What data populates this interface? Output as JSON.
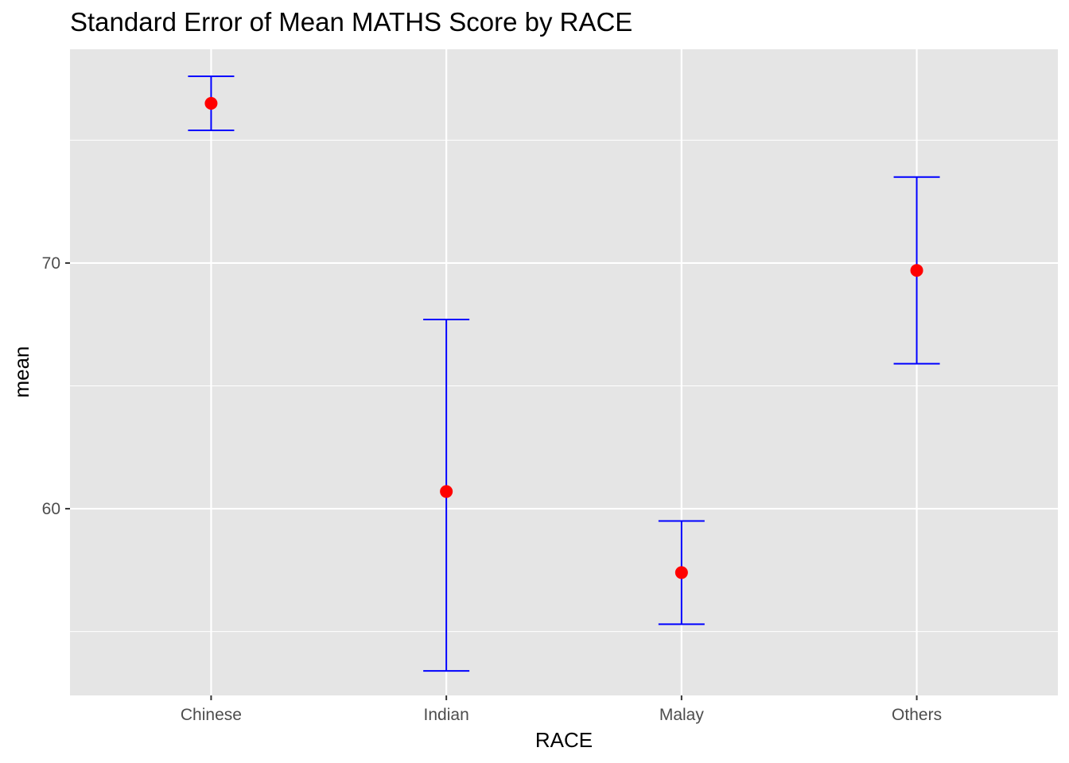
{
  "chart_data": {
    "type": "errorbar",
    "title": "Standard Error of Mean MATHS Score by RACE",
    "xlabel": "RACE",
    "ylabel": "mean",
    "categories": [
      "Chinese",
      "Indian",
      "Malay",
      "Others"
    ],
    "mean": [
      76.5,
      60.7,
      57.4,
      69.7
    ],
    "lower": [
      75.4,
      53.4,
      55.3,
      65.9
    ],
    "upper": [
      77.6,
      67.7,
      59.5,
      73.5
    ],
    "ylim": [
      52.4,
      78.7
    ],
    "y_major_ticks": [
      60,
      70
    ],
    "y_minor_ticks": [
      55,
      65,
      75
    ],
    "grid": true,
    "colors": {
      "panel": "#e5e5e5",
      "grid": "#ffffff",
      "errorbar": "#0000ff",
      "point": "#ff0000"
    }
  }
}
